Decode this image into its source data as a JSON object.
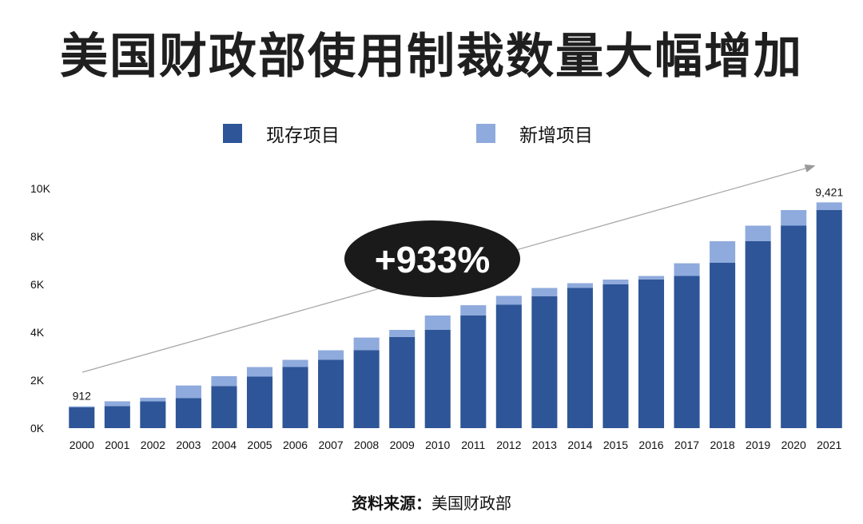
{
  "title": "美国财政部使用制裁数量大幅增加",
  "legend": [
    {
      "label": "现存项目",
      "color": "#2e5597"
    },
    {
      "label": "新增项目",
      "color": "#8faadc"
    }
  ],
  "badge": "+933%",
  "source": {
    "label": "资料来源：",
    "value": "美国财政部"
  },
  "chart_data": {
    "type": "bar",
    "stacked": true,
    "categories": [
      "2000",
      "2001",
      "2002",
      "2003",
      "2004",
      "2005",
      "2006",
      "2007",
      "2008",
      "2009",
      "2010",
      "2011",
      "2012",
      "2013",
      "2014",
      "2015",
      "2016",
      "2017",
      "2018",
      "2019",
      "2020",
      "2021"
    ],
    "series": [
      {
        "name": "现存项目",
        "color": "#2e5597",
        "values": [
          870,
          920,
          1120,
          1250,
          1750,
          2150,
          2550,
          2850,
          3250,
          3800,
          4100,
          4700,
          5150,
          5500,
          5850,
          6000,
          6200,
          6350,
          6900,
          7800,
          8450,
          9100
        ]
      },
      {
        "name": "新增项目",
        "color": "#8faadc",
        "values": [
          42,
          200,
          150,
          530,
          420,
          400,
          300,
          400,
          530,
          300,
          600,
          430,
          370,
          350,
          200,
          200,
          150,
          530,
          900,
          650,
          650,
          321
        ]
      }
    ],
    "data_labels": [
      {
        "category": "2000",
        "text": "912"
      },
      {
        "category": "2021",
        "text": "9,421"
      }
    ],
    "yticks": [
      "0K",
      "2K",
      "4K",
      "6K",
      "8K",
      "10K"
    ],
    "ytick_values": [
      0,
      2000,
      4000,
      6000,
      8000,
      10000
    ],
    "ylim": [
      0,
      10000
    ],
    "legend_position": "top-center",
    "grid": false,
    "annotation": "+933%"
  }
}
